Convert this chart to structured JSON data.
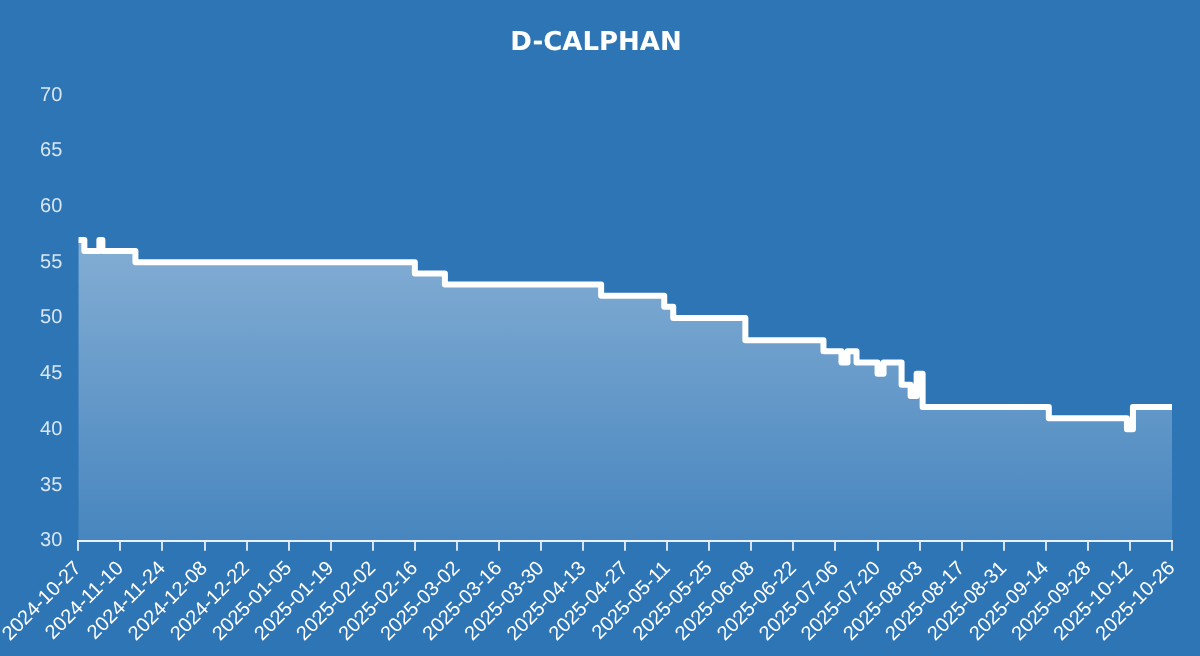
{
  "chart_data": {
    "type": "area",
    "title": "D-CALPHAN",
    "x": [
      "2024-10-27",
      "2024-10-29",
      "2024-10-29",
      "2024-11-03",
      "2024-11-03",
      "2024-11-04",
      "2024-11-04",
      "2024-11-15",
      "2024-11-15",
      "2025-02-16",
      "2025-02-16",
      "2025-02-26",
      "2025-02-26",
      "2025-04-19",
      "2025-04-19",
      "2025-05-10",
      "2025-05-10",
      "2025-05-13",
      "2025-05-13",
      "2025-06-06",
      "2025-06-06",
      "2025-07-02",
      "2025-07-02",
      "2025-07-08",
      "2025-07-08",
      "2025-07-10",
      "2025-07-10",
      "2025-07-13",
      "2025-07-13",
      "2025-07-20",
      "2025-07-20",
      "2025-07-22",
      "2025-07-22",
      "2025-07-28",
      "2025-07-28",
      "2025-07-31",
      "2025-07-31",
      "2025-08-02",
      "2025-08-02",
      "2025-08-04",
      "2025-08-04",
      "2025-09-15",
      "2025-09-15",
      "2025-10-11",
      "2025-10-11",
      "2025-10-13",
      "2025-10-13",
      "2025-10-26"
    ],
    "values": [
      57,
      57,
      56,
      56,
      57,
      57,
      56,
      56,
      55,
      55,
      54,
      54,
      53,
      53,
      52,
      52,
      51,
      51,
      50,
      50,
      48,
      48,
      47,
      47,
      46,
      46,
      47,
      47,
      46,
      46,
      45,
      45,
      46,
      46,
      44,
      44,
      43,
      43,
      45,
      45,
      42,
      42,
      41,
      41,
      40,
      40,
      42,
      42
    ],
    "color": "#ffffff",
    "xlim": [
      "2024-10-27",
      "2025-10-26"
    ],
    "xticks": [
      "2024-10-27",
      "2024-11-10",
      "2024-11-24",
      "2024-12-08",
      "2024-12-22",
      "2025-01-05",
      "2025-01-19",
      "2025-02-02",
      "2025-02-16",
      "2025-03-02",
      "2025-03-16",
      "2025-03-30",
      "2025-04-13",
      "2025-04-27",
      "2025-05-11",
      "2025-05-25",
      "2025-06-08",
      "2025-06-22",
      "2025-07-06",
      "2025-07-20",
      "2025-08-03",
      "2025-08-17",
      "2025-08-31",
      "2025-09-14",
      "2025-09-28",
      "2025-10-12",
      "2025-10-26"
    ],
    "ylim": [
      30,
      70
    ],
    "yticks": [
      30,
      35,
      40,
      45,
      50,
      55,
      60,
      65,
      70
    ],
    "grid": false,
    "legend": false,
    "marker": "none",
    "line_style": "solid"
  }
}
